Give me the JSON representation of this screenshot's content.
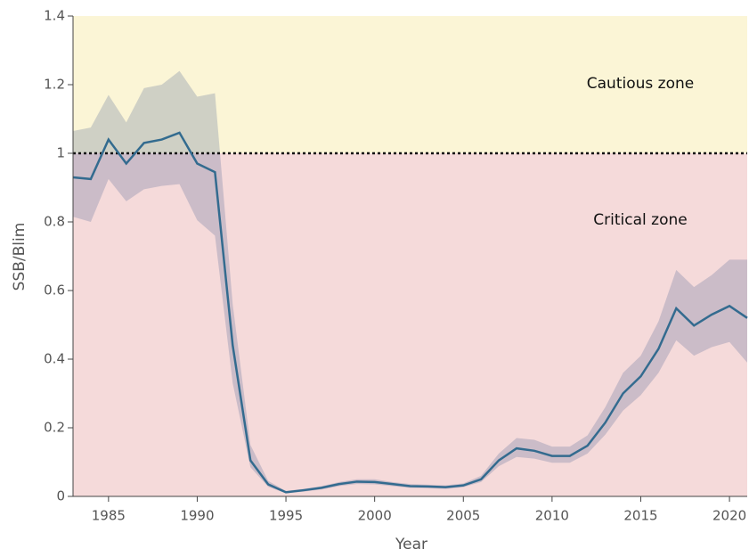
{
  "chart_data": {
    "type": "band-line",
    "x_label": "Year",
    "y_label": "SSB/Blim",
    "x": [
      1983,
      1984,
      1985,
      1986,
      1987,
      1988,
      1989,
      1990,
      1991,
      1992,
      1993,
      1994,
      1995,
      1996,
      1997,
      1998,
      1999,
      2000,
      2001,
      2002,
      2003,
      2004,
      2005,
      2006,
      2007,
      2008,
      2009,
      2010,
      2011,
      2012,
      2013,
      2014,
      2015,
      2016,
      2017,
      2018,
      2019,
      2020,
      2021
    ],
    "values": [
      0.93,
      0.925,
      1.04,
      0.97,
      1.03,
      1.04,
      1.06,
      0.97,
      0.945,
      0.44,
      0.105,
      0.035,
      0.012,
      0.018,
      0.025,
      0.036,
      0.043,
      0.042,
      0.036,
      0.03,
      0.029,
      0.027,
      0.032,
      0.05,
      0.105,
      0.14,
      0.133,
      0.118,
      0.118,
      0.148,
      0.215,
      0.3,
      0.35,
      0.43,
      0.548,
      0.498,
      0.53,
      0.555,
      0.52
    ],
    "upper": [
      1.065,
      1.075,
      1.17,
      1.09,
      1.19,
      1.2,
      1.24,
      1.165,
      1.175,
      0.56,
      0.15,
      0.045,
      0.016,
      0.022,
      0.03,
      0.042,
      0.05,
      0.05,
      0.042,
      0.036,
      0.034,
      0.032,
      0.038,
      0.06,
      0.125,
      0.17,
      0.165,
      0.145,
      0.145,
      0.178,
      0.26,
      0.36,
      0.41,
      0.51,
      0.66,
      0.61,
      0.645,
      0.69,
      0.69
    ],
    "lower": [
      0.815,
      0.8,
      0.925,
      0.86,
      0.895,
      0.905,
      0.91,
      0.805,
      0.76,
      0.33,
      0.085,
      0.028,
      0.009,
      0.014,
      0.02,
      0.03,
      0.036,
      0.035,
      0.03,
      0.025,
      0.024,
      0.022,
      0.027,
      0.042,
      0.088,
      0.115,
      0.11,
      0.098,
      0.098,
      0.125,
      0.18,
      0.25,
      0.295,
      0.36,
      0.455,
      0.41,
      0.435,
      0.45,
      0.39
    ],
    "color": "#336b8f",
    "band_color": "#5d6f9c",
    "zones": [
      {
        "name": "Cautious zone",
        "from": 1,
        "to": 1.4,
        "color": "#fbf5d6"
      },
      {
        "name": "Critical zone",
        "from": 0,
        "to": 1,
        "color": "#f5dada"
      }
    ],
    "threshold": 1,
    "xlim": [
      1983,
      2021
    ],
    "xticks": [
      1985,
      1990,
      1995,
      2000,
      2005,
      2010,
      2015,
      2020
    ],
    "ylim": [
      0,
      1.4
    ],
    "yticks": [
      0,
      0.2,
      0.4,
      0.6,
      0.8,
      1,
      1.2,
      1.4
    ]
  }
}
